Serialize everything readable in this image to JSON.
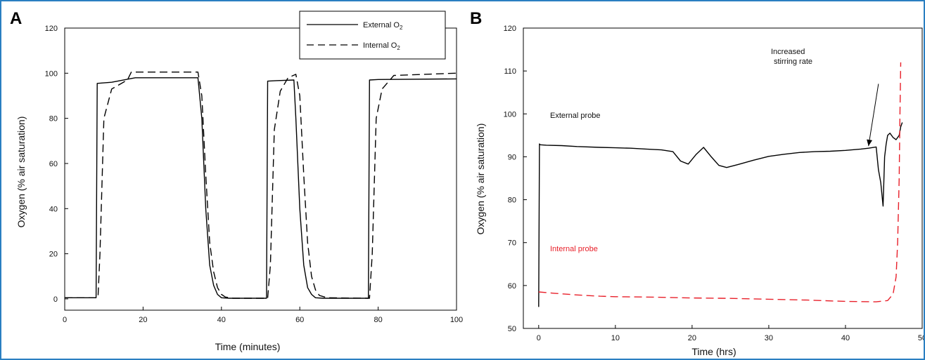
{
  "chart_data": [
    {
      "panel": "A",
      "type": "line",
      "xlabel": "Time (minutes)",
      "ylabel": "Oxygen (% air saturation)",
      "xlim": [
        0,
        100
      ],
      "ylim": [
        -5,
        120
      ],
      "xticks": [
        0,
        20,
        40,
        60,
        80,
        100
      ],
      "yticks": [
        0,
        20,
        40,
        60,
        80,
        100,
        120
      ],
      "legend": {
        "placement": "top-right",
        "entries": [
          {
            "label": "External O",
            "sub": "2"
          },
          {
            "label": "Internal O",
            "sub": "2"
          }
        ]
      },
      "series": [
        {
          "name": "External O2",
          "style": "solid",
          "color": "#000000",
          "x": [
            0,
            8,
            8.3,
            12,
            18,
            34,
            35,
            36,
            37,
            38,
            39,
            40,
            42,
            51.5,
            51.8,
            54,
            58.5,
            59,
            60,
            61,
            62,
            63,
            64,
            66,
            77.5,
            77.8,
            80,
            100
          ],
          "y": [
            0.5,
            0.5,
            95.5,
            96,
            98,
            98,
            80,
            40,
            15,
            6,
            2,
            0.5,
            0.3,
            0.3,
            96.5,
            96.7,
            97,
            80,
            40,
            15,
            5,
            2,
            0.5,
            0.3,
            0.3,
            97,
            97.2,
            97.5
          ]
        },
        {
          "name": "Internal O2",
          "style": "dashed",
          "color": "#000000",
          "x": [
            0,
            8.5,
            9,
            10,
            12,
            16,
            17,
            34,
            35,
            36,
            37,
            38,
            39,
            40,
            41,
            43,
            51.8,
            52.5,
            53.5,
            55,
            57,
            59,
            60,
            61,
            62,
            63,
            64,
            65,
            67,
            77.8,
            78.5,
            79.5,
            81,
            84,
            100
          ],
          "y": [
            0.5,
            0.5,
            20,
            80,
            93,
            97,
            100.5,
            100.5,
            90,
            55,
            25,
            12,
            5,
            2,
            0.8,
            0.3,
            0.3,
            15,
            75,
            92,
            98,
            99.5,
            90,
            55,
            25,
            10,
            4,
            1.5,
            0.5,
            0.3,
            20,
            80,
            93,
            99,
            100
          ]
        }
      ]
    },
    {
      "panel": "B",
      "type": "line",
      "xlabel": "Time (hrs)",
      "ylabel": "Oxygen (% air saturation)",
      "xlim": [
        -2,
        50
      ],
      "ylim": [
        50,
        120
      ],
      "xticks": [
        0,
        10,
        20,
        30,
        40,
        50
      ],
      "yticks": [
        50,
        60,
        70,
        80,
        90,
        100,
        110,
        120
      ],
      "annotations": [
        {
          "text": "Increased",
          "line": 1
        },
        {
          "text": "stirring rate",
          "line": 2
        }
      ],
      "annotation_arrow": {
        "from": [
          44.3,
          107
        ],
        "to": [
          43,
          92.5
        ]
      },
      "series": [
        {
          "name": "External probe",
          "style": "solid",
          "color": "#000000",
          "x": [
            0,
            0.1,
            0.2,
            1,
            3,
            5,
            8,
            10,
            12,
            14,
            16,
            17.5,
            18.5,
            19.5,
            20.5,
            21.5,
            22.5,
            23.5,
            24.5,
            26,
            28,
            30,
            32,
            34,
            36,
            38,
            40,
            42,
            43,
            44,
            44.3,
            44.6,
            44.9,
            45.1,
            45.3,
            45.5,
            45.8,
            46.2,
            46.6,
            47,
            47.2,
            47.4
          ],
          "y": [
            55,
            93,
            92.8,
            92.7,
            92.6,
            92.4,
            92.2,
            92.1,
            92.0,
            91.8,
            91.6,
            91.2,
            89,
            88.3,
            90.5,
            92.2,
            90,
            88,
            87.5,
            88.2,
            89.2,
            90.1,
            90.6,
            91.0,
            91.2,
            91.3,
            91.5,
            91.8,
            92.0,
            92.3,
            87,
            84,
            78.5,
            90,
            93,
            95,
            95.5,
            94.5,
            94,
            95,
            97,
            98
          ]
        },
        {
          "name": "Internal probe",
          "style": "dashed",
          "color": "#e8202a",
          "x": [
            0,
            2,
            5,
            8,
            10,
            15,
            20,
            25,
            30,
            35,
            40,
            44,
            45.5,
            46.2,
            46.6,
            46.8,
            47.0,
            47.1,
            47.2
          ],
          "y": [
            58.5,
            58.2,
            57.8,
            57.5,
            57.4,
            57.3,
            57.1,
            57.0,
            56.8,
            56.6,
            56.3,
            56.2,
            56.5,
            58,
            62,
            70,
            85,
            100,
            112
          ]
        }
      ]
    }
  ],
  "panels": {
    "a": {
      "letter": "A",
      "ylabel": "Oxygen (% air saturation)",
      "xlabel": "Time (minutes)",
      "legend_external": "External O",
      "legend_internal": "Internal O",
      "legend_sub": "2"
    },
    "b": {
      "letter": "B",
      "ylabel": "Oxygen (% air saturation)",
      "xlabel": "Time (hrs)",
      "label_external": "External probe",
      "label_internal": "Internal probe",
      "annotation_line1": "Increased",
      "annotation_line2": "stirring rate"
    }
  },
  "colors": {
    "frame": "#2a7fc1",
    "internal_probe": "#e8202a",
    "line": "#000000"
  }
}
